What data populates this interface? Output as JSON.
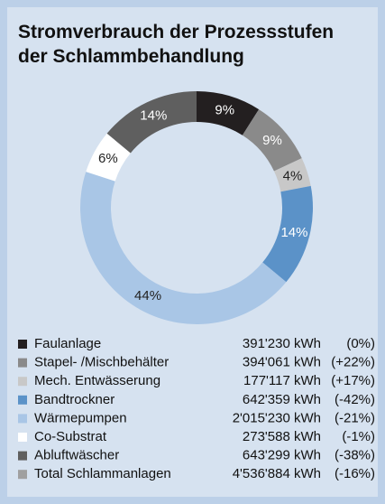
{
  "chart_data": {
    "type": "donut",
    "title": [
      "Stromverbrauch der Prozessstufen",
      "der Schlammbehandlung"
    ],
    "categories": [
      "Faulanlage",
      "Stapel- /Mischbehälter",
      "Mech. Entwässerung",
      "Bandtrockner",
      "Wärmepumpen",
      "Co-Substrat",
      "Abluftwäscher"
    ],
    "values": [
      9,
      9,
      4,
      14,
      44,
      6,
      14
    ],
    "value_labels": [
      "9%",
      "9%",
      "4%",
      "14%",
      "44%",
      "6%",
      "14%"
    ],
    "colors": [
      "#231f20",
      "#8a8a8a",
      "#c8c8c8",
      "#5b92c8",
      "#a9c6e6",
      "#ffffff",
      "#5f5f5f"
    ],
    "consumption": [
      391230,
      394061,
      177117,
      642359,
      2015230,
      273588,
      643299
    ],
    "consumption_labels": [
      "391'230 kWh",
      "394'061 kWh",
      "177'117 kWh",
      "642'359 kWh",
      "2'015'230 kWh",
      "273'588 kWh",
      "643'299 kWh"
    ],
    "changes": [
      "(0%)",
      "(+22%)",
      "(+17%)",
      "(-42%)",
      "(-21%)",
      "(-1%)",
      "(-38%)"
    ],
    "total": {
      "name": "Total Schlammanlagen",
      "consumption": 4536884,
      "consumption_label": "4'536'884 kWh",
      "change": "(-16%)",
      "color": "#a0a0a0"
    }
  }
}
